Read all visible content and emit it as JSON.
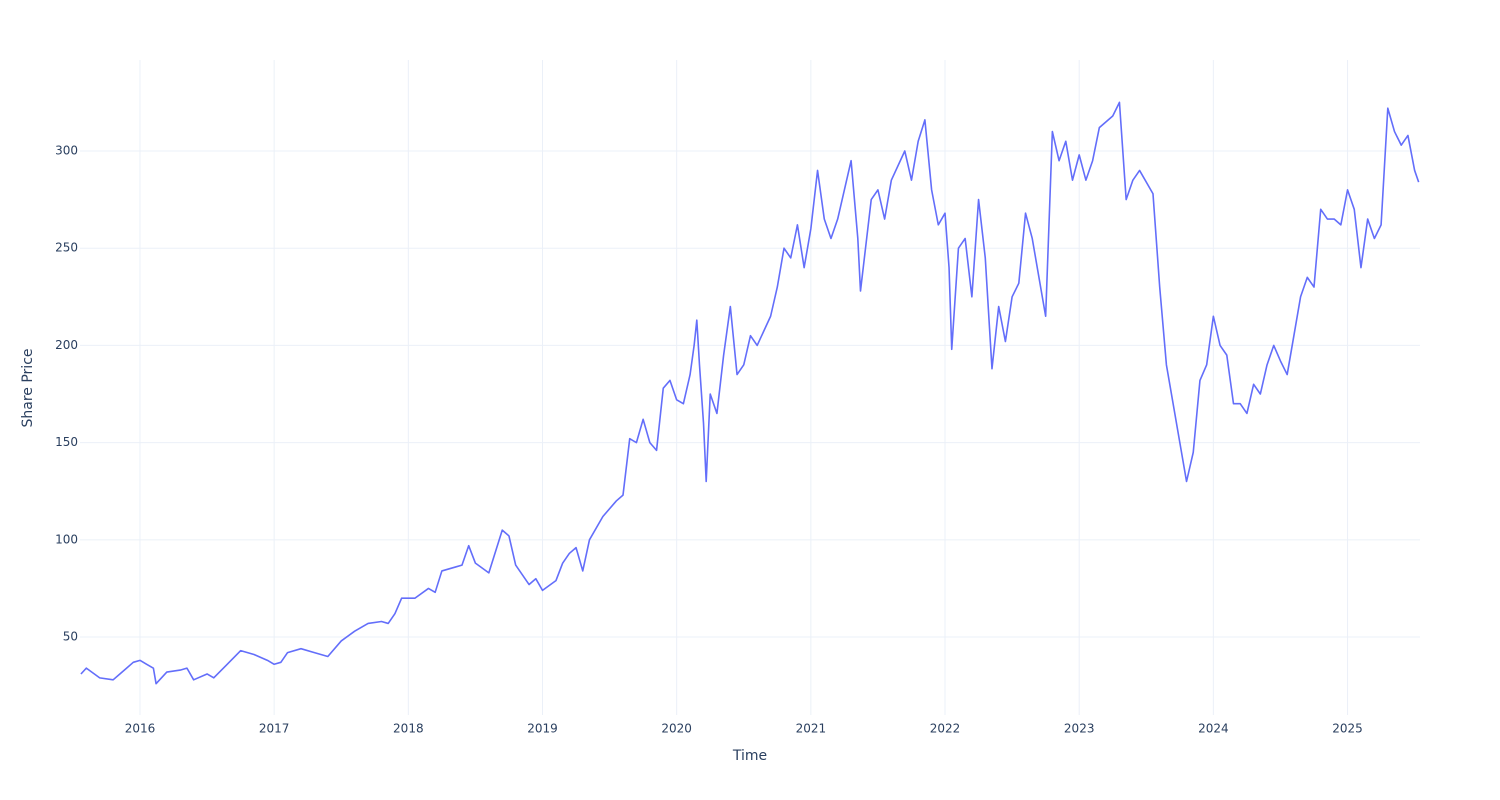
{
  "chart_data": {
    "type": "line",
    "x_label": "Time",
    "y_label": "Share Price",
    "color": "#636efa",
    "grid": true,
    "xlim": [
      2015.553,
      2025.54
    ],
    "ylim": [
      9.9,
      346.8
    ],
    "xticks": [
      2016,
      2017,
      2018,
      2019,
      2020,
      2021,
      2022,
      2023,
      2024,
      2025
    ],
    "yticks": [
      50,
      100,
      150,
      200,
      250,
      300
    ],
    "x": [
      2015.56,
      2015.6,
      2015.7,
      2015.8,
      2015.85,
      2015.95,
      2016.0,
      2016.05,
      2016.1,
      2016.12,
      2016.2,
      2016.3,
      2016.35,
      2016.4,
      2016.5,
      2016.55,
      2016.65,
      2016.75,
      2016.85,
      2016.95,
      2017.0,
      2017.05,
      2017.1,
      2017.2,
      2017.3,
      2017.4,
      2017.5,
      2017.6,
      2017.7,
      2017.8,
      2017.85,
      2017.9,
      2017.95,
      2018.05,
      2018.15,
      2018.2,
      2018.25,
      2018.35,
      2018.4,
      2018.45,
      2018.5,
      2018.6,
      2018.7,
      2018.75,
      2018.8,
      2018.85,
      2018.9,
      2018.95,
      2019.0,
      2019.1,
      2019.15,
      2019.2,
      2019.25,
      2019.3,
      2019.35,
      2019.45,
      2019.55,
      2019.6,
      2019.65,
      2019.7,
      2019.75,
      2019.8,
      2019.85,
      2019.9,
      2019.95,
      2020.0,
      2020.05,
      2020.1,
      2020.13,
      2020.15,
      2020.17,
      2020.2,
      2020.22,
      2020.25,
      2020.3,
      2020.35,
      2020.4,
      2020.45,
      2020.5,
      2020.55,
      2020.6,
      2020.7,
      2020.75,
      2020.8,
      2020.85,
      2020.9,
      2020.95,
      2021.0,
      2021.05,
      2021.1,
      2021.15,
      2021.2,
      2021.3,
      2021.35,
      2021.37,
      2021.45,
      2021.5,
      2021.55,
      2021.6,
      2021.7,
      2021.75,
      2021.8,
      2021.85,
      2021.9,
      2021.95,
      2022.0,
      2022.03,
      2022.05,
      2022.1,
      2022.15,
      2022.2,
      2022.25,
      2022.3,
      2022.35,
      2022.4,
      2022.45,
      2022.5,
      2022.55,
      2022.6,
      2022.65,
      2022.7,
      2022.75,
      2022.8,
      2022.85,
      2022.9,
      2022.95,
      2023.0,
      2023.05,
      2023.1,
      2023.15,
      2023.25,
      2023.3,
      2023.35,
      2023.4,
      2023.45,
      2023.55,
      2023.6,
      2023.65,
      2023.7,
      2023.75,
      2023.8,
      2023.85,
      2023.9,
      2023.95,
      2024.0,
      2024.05,
      2024.1,
      2024.15,
      2024.2,
      2024.25,
      2024.3,
      2024.35,
      2024.4,
      2024.45,
      2024.5,
      2024.55,
      2024.6,
      2024.65,
      2024.7,
      2024.75,
      2024.8,
      2024.85,
      2024.9,
      2024.95,
      2025.0,
      2025.05,
      2025.1,
      2025.15,
      2025.2,
      2025.25,
      2025.3,
      2025.35,
      2025.4,
      2025.45,
      2025.5,
      2025.53
    ],
    "values": [
      31,
      34,
      29,
      28,
      31,
      37,
      38,
      36,
      34,
      26,
      32,
      33,
      34,
      28,
      31,
      29,
      36,
      43,
      41,
      38,
      36,
      37,
      42,
      44,
      42,
      40,
      48,
      53,
      57,
      58,
      57,
      62,
      70,
      70,
      75,
      73,
      84,
      86,
      87,
      97,
      88,
      83,
      105,
      102,
      87,
      82,
      77,
      80,
      74,
      79,
      88,
      93,
      96,
      84,
      100,
      112,
      120,
      123,
      152,
      150,
      162,
      150,
      146,
      178,
      182,
      172,
      170,
      185,
      200,
      213,
      190,
      160,
      130,
      175,
      165,
      195,
      220,
      185,
      190,
      205,
      200,
      215,
      230,
      250,
      245,
      262,
      240,
      260,
      290,
      265,
      255,
      265,
      295,
      255,
      228,
      275,
      280,
      265,
      285,
      300,
      285,
      305,
      316,
      280,
      262,
      268,
      240,
      198,
      250,
      255,
      225,
      275,
      245,
      188,
      220,
      202,
      225,
      232,
      268,
      255,
      235,
      215,
      310,
      295,
      305,
      285,
      298,
      285,
      295,
      312,
      318,
      325,
      275,
      285,
      290,
      278,
      230,
      190,
      170,
      150,
      130,
      145,
      182,
      190,
      215,
      200,
      195,
      170,
      170,
      165,
      180,
      175,
      190,
      200,
      192,
      185,
      205,
      225,
      235,
      230,
      270,
      265,
      265,
      262,
      280,
      270,
      240,
      265,
      255,
      262,
      322,
      310,
      303,
      308,
      290,
      284
    ]
  }
}
